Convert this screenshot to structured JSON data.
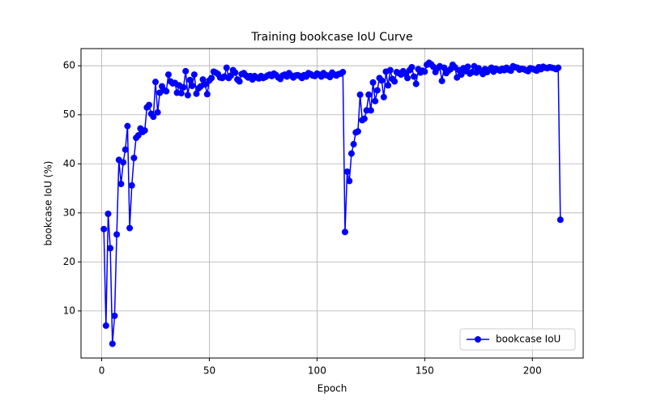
{
  "chart_data": {
    "type": "line",
    "title": "Training bookcase IoU Curve",
    "x_label": "Epoch",
    "y_label": "bookcase IoU (%)",
    "x": [
      1,
      2,
      3,
      4,
      5,
      6,
      7,
      8,
      9,
      10,
      11,
      12,
      13,
      14,
      15,
      16,
      17,
      18,
      19,
      20,
      21,
      22,
      23,
      24,
      25,
      26,
      27,
      28,
      29,
      30,
      31,
      32,
      33,
      34,
      35,
      36,
      37,
      38,
      39,
      40,
      41,
      42,
      43,
      44,
      45,
      46,
      47,
      48,
      49,
      50,
      51,
      52,
      53,
      54,
      55,
      56,
      57,
      58,
      59,
      60,
      61,
      62,
      63,
      64,
      65,
      66,
      67,
      68,
      69,
      70,
      71,
      72,
      73,
      74,
      75,
      76,
      77,
      78,
      79,
      80,
      81,
      82,
      83,
      84,
      85,
      86,
      87,
      88,
      89,
      90,
      91,
      92,
      93,
      94,
      95,
      96,
      97,
      98,
      99,
      100,
      101,
      102,
      103,
      104,
      105,
      106,
      107,
      108,
      109,
      110,
      111,
      112,
      113,
      114,
      115,
      116,
      117,
      118,
      119,
      120,
      121,
      122,
      123,
      124,
      125,
      126,
      127,
      128,
      129,
      130,
      131,
      132,
      133,
      134,
      135,
      136,
      137,
      138,
      139,
      140,
      141,
      142,
      143,
      144,
      145,
      146,
      147,
      148,
      149,
      150,
      151,
      152,
      153,
      154,
      155,
      156,
      157,
      158,
      159,
      160,
      161,
      162,
      163,
      164,
      165,
      166,
      167,
      168,
      169,
      170,
      171,
      172,
      173,
      174,
      175,
      176,
      177,
      178,
      179,
      180,
      181,
      182,
      183,
      184,
      185,
      186,
      187,
      188,
      189,
      190,
      191,
      192,
      193,
      194,
      195,
      196,
      197,
      198,
      199,
      200,
      201,
      202,
      203,
      204,
      205,
      206,
      207,
      208,
      209,
      210,
      211,
      212,
      213
    ],
    "series": [
      {
        "name": "bookcase IoU",
        "color": "#0000ff",
        "values": [
          26.7,
          7.0,
          29.8,
          22.8,
          3.3,
          9.0,
          25.6,
          40.8,
          35.9,
          40.3,
          42.9,
          47.7,
          26.9,
          35.6,
          41.2,
          45.3,
          45.8,
          47.2,
          46.5,
          46.8,
          51.5,
          52.0,
          50.2,
          49.6,
          56.7,
          50.5,
          54.5,
          55.8,
          55.0,
          54.8,
          58.2,
          56.8,
          56.4,
          56.5,
          54.5,
          56.0,
          54.4,
          55.6,
          58.9,
          54.0,
          57.1,
          55.9,
          58.2,
          54.3,
          55.4,
          55.8,
          57.2,
          56.2,
          54.2,
          57.0,
          57.5,
          58.8,
          58.6,
          58.3,
          57.6,
          57.5,
          57.8,
          59.6,
          57.5,
          58.0,
          59.1,
          58.6,
          57.2,
          56.8,
          58.3,
          58.5,
          58.0,
          57.6,
          57.9,
          57.2,
          57.9,
          57.6,
          57.4,
          57.9,
          57.5,
          57.7,
          58.0,
          58.2,
          57.9,
          58.4,
          58.1,
          57.6,
          57.3,
          58.0,
          58.2,
          57.8,
          58.5,
          58.0,
          57.6,
          58.0,
          58.1,
          57.9,
          57.5,
          58.1,
          57.8,
          58.5,
          58.3,
          58.0,
          57.9,
          58.4,
          58.2,
          57.8,
          58.5,
          58.1,
          58.0,
          57.7,
          58.6,
          58.2,
          58.0,
          58.3,
          58.4,
          58.7,
          26.1,
          38.4,
          36.5,
          42.1,
          44.0,
          46.4,
          46.6,
          54.1,
          48.9,
          49.2,
          50.9,
          54.1,
          50.9,
          56.6,
          52.8,
          55.0,
          57.5,
          57.0,
          53.6,
          58.8,
          56.0,
          59.1,
          57.3,
          56.8,
          58.7,
          58.5,
          58.2,
          58.9,
          58.4,
          57.5,
          59.1,
          59.7,
          57.8,
          56.3,
          59.3,
          58.6,
          59.0,
          58.8,
          60.2,
          60.6,
          60.3,
          59.8,
          58.7,
          59.5,
          59.9,
          56.9,
          59.6,
          58.5,
          59.0,
          59.3,
          60.2,
          59.7,
          57.6,
          59.1,
          58.2,
          59.5,
          58.9,
          59.8,
          58.4,
          58.7,
          59.9,
          58.6,
          59.5,
          59.0,
          58.3,
          59.3,
          58.7,
          59.2,
          59.6,
          58.8,
          59.4,
          59.2,
          59.0,
          59.4,
          59.1,
          59.6,
          59.2,
          59.0,
          59.9,
          59.7,
          59.6,
          59.2,
          59.4,
          59.3,
          59.1,
          58.9,
          59.5,
          59.4,
          59.2,
          59.0,
          59.7,
          59.3,
          59.8,
          59.6,
          59.5,
          59.7,
          59.6,
          59.5,
          59.3,
          59.6,
          28.6
        ]
      }
    ],
    "xlim": [
      -9.6,
      223.6
    ],
    "ylim": [
      0.4,
      63.5
    ],
    "xticks": [
      0,
      50,
      100,
      150,
      200
    ],
    "yticks": [
      10,
      20,
      30,
      40,
      50,
      60
    ],
    "grid": true,
    "legend": "lower right"
  }
}
